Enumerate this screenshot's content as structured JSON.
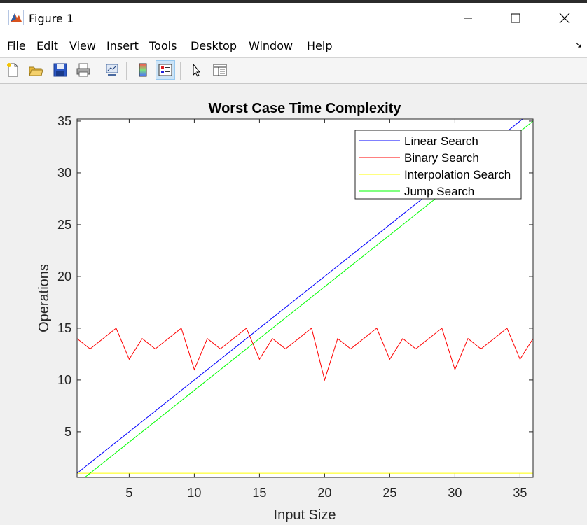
{
  "window": {
    "title": "Figure 1"
  },
  "menu": [
    "File",
    "Edit",
    "View",
    "Insert",
    "Tools",
    "Desktop",
    "Window",
    "Help"
  ],
  "toolbar": {
    "buttons": [
      "new-figure-icon",
      "open-file-icon",
      "save-icon",
      "print-icon",
      "link-plot-icon",
      "colorbar-icon",
      "legend-icon",
      "pointer-icon",
      "property-editor-icon"
    ]
  },
  "chart_data": {
    "type": "line",
    "title": "Worst Case Time Complexity",
    "xlabel": "Input Size",
    "ylabel": "Operations",
    "xlim": [
      1,
      36
    ],
    "ylim": [
      0.6,
      35.2
    ],
    "xticks": [
      5,
      10,
      15,
      20,
      25,
      30,
      35
    ],
    "yticks": [
      5,
      10,
      15,
      20,
      25,
      30,
      35
    ],
    "legend_position": "top-right",
    "series": [
      {
        "name": "Linear Search",
        "color": "#0000ff",
        "x": [
          1,
          36
        ],
        "y": [
          1,
          36
        ]
      },
      {
        "name": "Binary Search",
        "color": "#ff0000",
        "x": [
          1,
          2,
          3,
          4,
          5,
          6,
          7,
          8,
          9,
          10,
          11,
          12,
          13,
          14,
          15,
          16,
          17,
          18,
          19,
          20,
          21,
          22,
          23,
          24,
          25,
          26,
          27,
          28,
          29,
          30,
          31,
          32,
          33,
          34,
          35,
          36
        ],
        "y": [
          14,
          13,
          14,
          15,
          12,
          14,
          13,
          14,
          15,
          11,
          14,
          13,
          14,
          15,
          12,
          14,
          13,
          14,
          15,
          10,
          14,
          13,
          14,
          15,
          12,
          14,
          13,
          14,
          15,
          11,
          14,
          13,
          14,
          15,
          12,
          14
        ]
      },
      {
        "name": "Interpolation Search",
        "color": "#ffff00",
        "x": [
          1,
          36
        ],
        "y": [
          1,
          1
        ]
      },
      {
        "name": "Jump Search",
        "color": "#00ff00",
        "x": [
          1,
          36
        ],
        "y": [
          0,
          35
        ]
      }
    ]
  }
}
